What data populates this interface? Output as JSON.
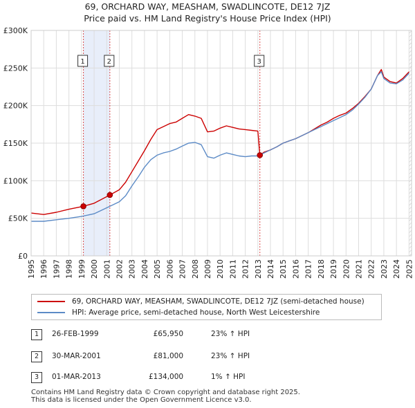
{
  "title_line1": "69, ORCHARD WAY, MEASHAM, SWADLINCOTE, DE12 7JZ",
  "title_line2": "Price paid vs. HM Land Registry's House Price Index (HPI)",
  "chart_data": {
    "type": "line",
    "title": "Price paid vs. HM Land Registry's House Price Index (HPI)",
    "xlim": [
      1995.0,
      2025.2
    ],
    "ylim": [
      0,
      300000
    ],
    "y_ticks": [
      0,
      50000,
      100000,
      150000,
      200000,
      250000,
      300000
    ],
    "y_tick_labels": [
      "£0",
      "£50K",
      "£100K",
      "£150K",
      "£200K",
      "£250K",
      "£300K"
    ],
    "x_ticks": [
      "1995",
      "1996",
      "1997",
      "1998",
      "1999",
      "2000",
      "2001",
      "2002",
      "2003",
      "2004",
      "2005",
      "2006",
      "2007",
      "2008",
      "2009",
      "2010",
      "2011",
      "2012",
      "2013",
      "2014",
      "2015",
      "2016",
      "2017",
      "2018",
      "2019",
      "2020",
      "2021",
      "2022",
      "2023",
      "2024",
      "2025"
    ],
    "grid": true,
    "series": [
      {
        "name": "69, ORCHARD WAY, MEASHAM, SWADLINCOTE, DE12 7JZ (semi-detached house)",
        "color": "#cc0000",
        "x": [
          1995.0,
          1996.0,
          1997.0,
          1998.0,
          1999.15,
          2000.0,
          2001.25,
          2002.0,
          2002.5,
          2003.0,
          2003.5,
          2004.0,
          2004.5,
          2005.0,
          2005.5,
          2006.0,
          2006.5,
          2007.0,
          2007.5,
          2008.0,
          2008.5,
          2009.0,
          2009.5,
          2010.0,
          2010.5,
          2011.0,
          2011.5,
          2012.0,
          2012.5,
          2013.0,
          2013.16,
          2013.5,
          2014.0,
          2014.5,
          2015.0,
          2015.5,
          2016.0,
          2016.5,
          2017.0,
          2017.5,
          2018.0,
          2018.5,
          2019.0,
          2019.5,
          2020.0,
          2020.5,
          2021.0,
          2021.5,
          2022.0,
          2022.5,
          2022.8,
          2023.0,
          2023.5,
          2024.0,
          2024.5,
          2025.0
        ],
        "values": [
          57000,
          55000,
          58000,
          62000,
          65950,
          70000,
          81000,
          88000,
          98000,
          112000,
          126000,
          140000,
          155000,
          168000,
          172000,
          176000,
          178000,
          183000,
          188000,
          186000,
          183000,
          165000,
          166000,
          170000,
          173000,
          171000,
          169000,
          168000,
          167000,
          166000,
          134000,
          138000,
          141000,
          145000,
          150000,
          153000,
          156000,
          160000,
          164000,
          169000,
          174000,
          178000,
          183000,
          187000,
          190000,
          196000,
          203000,
          212000,
          222000,
          240000,
          248000,
          238000,
          232000,
          230000,
          236000,
          245000
        ]
      },
      {
        "name": "HPI: Average price, semi-detached house, North West Leicestershire",
        "color": "#5b8ac6",
        "x": [
          1995.0,
          1996.0,
          1997.0,
          1998.0,
          1999.0,
          2000.0,
          2001.0,
          2002.0,
          2002.5,
          2003.0,
          2003.5,
          2004.0,
          2004.5,
          2005.0,
          2005.5,
          2006.0,
          2006.5,
          2007.0,
          2007.5,
          2008.0,
          2008.5,
          2009.0,
          2009.5,
          2010.0,
          2010.5,
          2011.0,
          2011.5,
          2012.0,
          2012.5,
          2013.0,
          2013.5,
          2014.0,
          2014.5,
          2015.0,
          2015.5,
          2016.0,
          2016.5,
          2017.0,
          2017.5,
          2018.0,
          2018.5,
          2019.0,
          2019.5,
          2020.0,
          2020.5,
          2021.0,
          2021.5,
          2022.0,
          2022.5,
          2022.8,
          2023.0,
          2023.5,
          2024.0,
          2024.5,
          2025.0
        ],
        "values": [
          46000,
          46000,
          48000,
          50000,
          52500,
          56000,
          64000,
          72000,
          80000,
          93000,
          105000,
          118000,
          128000,
          134000,
          137000,
          139000,
          142000,
          146000,
          150000,
          151000,
          148000,
          132000,
          130000,
          134000,
          137000,
          135000,
          133000,
          132000,
          133000,
          133000,
          137000,
          141000,
          145000,
          150000,
          153000,
          156000,
          160000,
          164000,
          168000,
          172000,
          176000,
          180000,
          184000,
          188000,
          194000,
          202000,
          211000,
          222000,
          240000,
          245000,
          236000,
          230000,
          229000,
          234000,
          243000
        ]
      }
    ],
    "sales": [
      {
        "label": "1",
        "x": 1999.15,
        "value": 65950
      },
      {
        "label": "2",
        "x": 2001.25,
        "value": 81000
      },
      {
        "label": "3",
        "x": 2013.16,
        "value": 134000
      }
    ],
    "shaded_period": [
      1999.15,
      2001.25
    ],
    "hatched_period": [
      2025.0,
      2025.2
    ]
  },
  "legend": {
    "red_label": "69, ORCHARD WAY, MEASHAM, SWADLINCOTE, DE12 7JZ (semi-detached house)",
    "blue_label": "HPI: Average price, semi-detached house, North West Leicestershire",
    "red_color": "#cc0000",
    "blue_color": "#5b8ac6"
  },
  "transactions": [
    {
      "num": "1",
      "date": "26-FEB-1999",
      "price": "£65,950",
      "hpi": "23% ↑ HPI"
    },
    {
      "num": "2",
      "date": "30-MAR-2001",
      "price": "£81,000",
      "hpi": "23% ↑ HPI"
    },
    {
      "num": "3",
      "date": "01-MAR-2013",
      "price": "£134,000",
      "hpi": "1% ↑ HPI"
    }
  ],
  "footer": {
    "line1": "Contains HM Land Registry data © Crown copyright and database right 2025.",
    "line2": "This data is licensed under the Open Government Licence v3.0."
  }
}
